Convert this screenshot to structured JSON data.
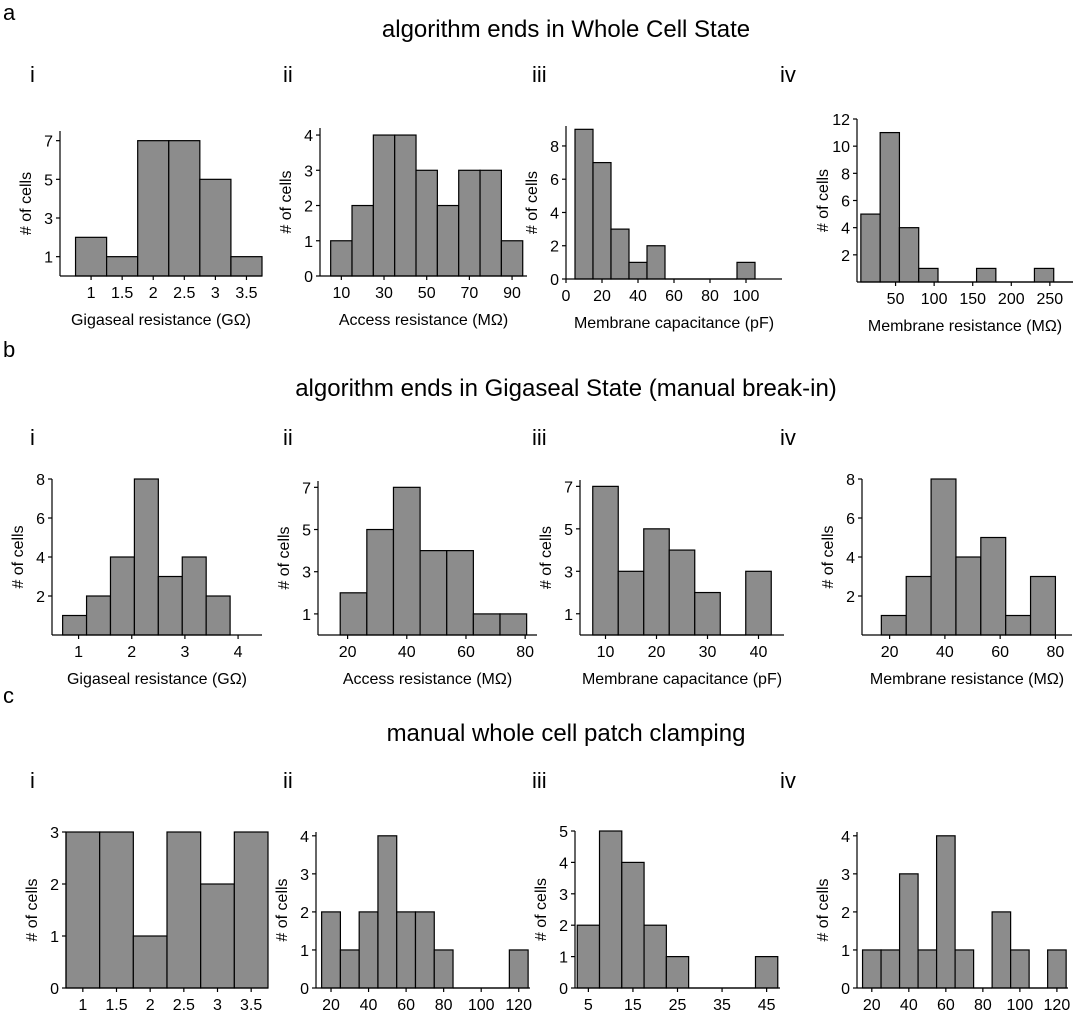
{
  "sections": [
    {
      "letter": "a",
      "title": "algorithm ends in Whole Cell State"
    },
    {
      "letter": "b",
      "title": "algorithm ends in Gigaseal State (manual break-in)"
    },
    {
      "letter": "c",
      "title": "manual whole cell patch clamping"
    }
  ],
  "panel_labels": [
    "i",
    "ii",
    "iii",
    "iv"
  ],
  "colors": {
    "bar_fill": "#8c8c8c",
    "bar_stroke": "#000000",
    "axis": "#000000"
  },
  "chart_data": [
    {
      "type": "bar",
      "section": "a",
      "panel": "i",
      "xlabel": "Gigaseal resistance (GΩ)",
      "ylabel": "# of cells",
      "bin_edges": [
        0.75,
        1.25,
        1.75,
        2.25,
        2.75,
        3.25,
        3.75
      ],
      "values": [
        2,
        1,
        7,
        7,
        5,
        1
      ],
      "xlim": [
        0.5,
        3.75
      ],
      "ylim": [
        0,
        7.5
      ],
      "xticks": [
        1,
        1.5,
        2,
        2.5,
        3,
        3.5
      ],
      "xtick_labels": [
        "1",
        "1.5",
        "2",
        "2.5",
        "3",
        "3.5"
      ],
      "yticks": [
        1,
        3,
        5,
        7
      ],
      "ytick_labels": [
        "1",
        "3",
        "5",
        "7"
      ]
    },
    {
      "type": "bar",
      "section": "a",
      "panel": "ii",
      "xlabel": "Access resistance (MΩ)",
      "ylabel": "# of cells",
      "bin_edges": [
        5,
        15,
        25,
        35,
        45,
        55,
        65,
        75,
        85,
        95
      ],
      "values": [
        1,
        2,
        4,
        4,
        3,
        2,
        3,
        3,
        1
      ],
      "xlim": [
        0,
        97
      ],
      "ylim": [
        0,
        4.2
      ],
      "xticks": [
        10,
        30,
        50,
        70,
        90
      ],
      "xtick_labels": [
        "10",
        "30",
        "50",
        "70",
        "90"
      ],
      "yticks": [
        0,
        1,
        2,
        3,
        4
      ],
      "ytick_labels": [
        "0",
        "1",
        "2",
        "3",
        "4"
      ]
    },
    {
      "type": "bar",
      "section": "a",
      "panel": "iii",
      "xlabel": "Membrane capacitance (pF)",
      "ylabel": "# of cells",
      "bin_edges": [
        5,
        15,
        25,
        35,
        45,
        55,
        65,
        75,
        85,
        95,
        105
      ],
      "values": [
        9,
        7,
        3,
        1,
        2,
        0,
        0,
        0,
        0,
        1
      ],
      "xlim": [
        0,
        120
      ],
      "ylim": [
        0,
        9.2
      ],
      "xticks": [
        0,
        20,
        40,
        60,
        80,
        100
      ],
      "xtick_labels": [
        "0",
        "20",
        "40",
        "60",
        "80",
        "100"
      ],
      "yticks": [
        0,
        2,
        4,
        6,
        8
      ],
      "ytick_labels": [
        "0",
        "2",
        "4",
        "6",
        "8"
      ]
    },
    {
      "type": "bar",
      "section": "a",
      "panel": "iv",
      "xlabel": "Membrane resistance (MΩ)",
      "ylabel": "# of cells",
      "bin_edges": [
        5,
        30,
        55,
        80,
        105,
        130,
        155,
        180,
        205,
        230,
        255,
        280
      ],
      "values": [
        5,
        11,
        4,
        1,
        0,
        0,
        1,
        0,
        0,
        1,
        0
      ],
      "xlim": [
        0,
        280
      ],
      "ylim": [
        0,
        12
      ],
      "xticks": [
        50,
        100,
        150,
        200,
        250
      ],
      "xtick_labels": [
        "50",
        "100",
        "150",
        "200",
        "250"
      ],
      "yticks": [
        2,
        4,
        6,
        8,
        10,
        12
      ],
      "ytick_labels": [
        "2",
        "4",
        "6",
        "8",
        "10",
        "12"
      ]
    },
    {
      "type": "bar",
      "section": "b",
      "panel": "i",
      "xlabel": "Gigaseal resistance (GΩ)",
      "ylabel": "# of cells",
      "bin_edges": [
        0.7,
        1.15,
        1.6,
        2.05,
        2.5,
        2.95,
        3.4,
        3.85
      ],
      "values": [
        1,
        2,
        4,
        8,
        3,
        4,
        2
      ],
      "xlim": [
        0.5,
        4.45
      ],
      "ylim": [
        0,
        8
      ],
      "xticks": [
        1,
        2,
        3,
        4
      ],
      "xtick_labels": [
        "1",
        "2",
        "3",
        "4"
      ],
      "yticks": [
        2,
        4,
        6,
        8
      ],
      "ytick_labels": [
        "2",
        "4",
        "6",
        "8"
      ]
    },
    {
      "type": "bar",
      "section": "b",
      "panel": "ii",
      "xlabel": "Access resistance (MΩ)",
      "ylabel": "# of cells",
      "bin_edges": [
        17.5,
        26.5,
        35.5,
        44.5,
        53.5,
        62.5,
        71.5,
        80.5
      ],
      "values": [
        2,
        5,
        7,
        4,
        4,
        1,
        1
      ],
      "xlim": [
        10,
        84
      ],
      "ylim": [
        0,
        7.3
      ],
      "xticks": [
        20,
        40,
        60,
        80
      ],
      "xtick_labels": [
        "20",
        "40",
        "60",
        "80"
      ],
      "yticks": [
        1,
        3,
        5,
        7
      ],
      "ytick_labels": [
        "1",
        "3",
        "5",
        "7"
      ]
    },
    {
      "type": "bar",
      "section": "b",
      "panel": "iii",
      "xlabel": "Membrane capacitance (pF)",
      "ylabel": "# of cells",
      "bin_edges": [
        7.5,
        12.5,
        17.5,
        22.5,
        27.5,
        32.5,
        37.5,
        42.5
      ],
      "values": [
        7,
        3,
        5,
        4,
        2,
        0,
        3
      ],
      "xlim": [
        5,
        45
      ],
      "ylim": [
        0,
        7.3
      ],
      "xticks": [
        10,
        20,
        30,
        40
      ],
      "xtick_labels": [
        "10",
        "20",
        "30",
        "40"
      ],
      "yticks": [
        1,
        3,
        5,
        7
      ],
      "ytick_labels": [
        "1",
        "3",
        "5",
        "7"
      ]
    },
    {
      "type": "bar",
      "section": "b",
      "panel": "iv",
      "xlabel": "Membrane resistance (MΩ)",
      "ylabel": "# of cells",
      "bin_edges": [
        17,
        26,
        35,
        44,
        53,
        62,
        71,
        80
      ],
      "values": [
        1,
        3,
        8,
        4,
        5,
        1,
        3
      ],
      "xlim": [
        10,
        86
      ],
      "ylim": [
        0,
        8
      ],
      "xticks": [
        20,
        40,
        60,
        80
      ],
      "xtick_labels": [
        "20",
        "40",
        "60",
        "80"
      ],
      "yticks": [
        2,
        4,
        6,
        8
      ],
      "ytick_labels": [
        "2",
        "4",
        "6",
        "8"
      ]
    },
    {
      "type": "bar",
      "section": "c",
      "panel": "i",
      "xlabel": "Gigaseal resistance (GΩ)",
      "ylabel": "# of cells",
      "bin_edges": [
        0.75,
        1.25,
        1.75,
        2.25,
        2.75,
        3.25,
        3.75
      ],
      "values": [
        3,
        3,
        1,
        3,
        2,
        3
      ],
      "xlim": [
        0.75,
        3.75
      ],
      "ylim": [
        0,
        3
      ],
      "xticks": [
        1,
        1.5,
        2,
        2.5,
        3,
        3.5
      ],
      "xtick_labels": [
        "1",
        "1.5",
        "2",
        "2.5",
        "3",
        "3.5"
      ],
      "yticks": [
        0,
        1,
        2,
        3
      ],
      "ytick_labels": [
        "0",
        "1",
        "2",
        "3"
      ]
    },
    {
      "type": "bar",
      "section": "c",
      "panel": "ii",
      "xlabel": "Access resistance (MΩ)",
      "ylabel": "# of cells",
      "bin_edges": [
        15,
        25,
        35,
        45,
        55,
        65,
        75,
        85,
        95,
        105,
        115,
        125
      ],
      "values": [
        2,
        1,
        2,
        4,
        2,
        2,
        1,
        0,
        0,
        0,
        1
      ],
      "xlim": [
        12,
        126
      ],
      "ylim": [
        0,
        4.1
      ],
      "xticks": [
        20,
        40,
        60,
        80,
        100,
        120
      ],
      "xtick_labels": [
        "20",
        "40",
        "60",
        "80",
        "100",
        "120"
      ],
      "yticks": [
        0,
        1,
        2,
        3,
        4
      ],
      "ytick_labels": [
        "0",
        "1",
        "2",
        "3",
        "4"
      ]
    },
    {
      "type": "bar",
      "section": "c",
      "panel": "iii",
      "xlabel": "Membrane capacitance (pF)",
      "ylabel": "# of cells",
      "bin_edges": [
        2.5,
        7.5,
        12.5,
        17.5,
        22.5,
        27.5,
        32.5,
        37.5,
        42.5,
        47.5
      ],
      "values": [
        2,
        5,
        4,
        2,
        1,
        0,
        0,
        0,
        1
      ],
      "xlim": [
        2,
        48
      ],
      "ylim": [
        0,
        5
      ],
      "xticks": [
        5,
        15,
        25,
        35,
        45
      ],
      "xtick_labels": [
        "5",
        "15",
        "25",
        "35",
        "45"
      ],
      "yticks": [
        0,
        1,
        2,
        3,
        4,
        5
      ],
      "ytick_labels": [
        "0",
        "1",
        "2",
        "3",
        "4",
        "5"
      ]
    },
    {
      "type": "bar",
      "section": "c",
      "panel": "iv",
      "xlabel": "Membrane resistance (MΩ)",
      "ylabel": "# of cells",
      "bin_edges": [
        15,
        25,
        35,
        45,
        55,
        65,
        75,
        85,
        95,
        105,
        115,
        125
      ],
      "values": [
        1,
        1,
        3,
        1,
        4,
        1,
        0,
        2,
        1,
        0,
        1
      ],
      "xlim": [
        12,
        126
      ],
      "ylim": [
        0,
        4.1
      ],
      "xticks": [
        20,
        40,
        60,
        80,
        100,
        120
      ],
      "xtick_labels": [
        "20",
        "40",
        "60",
        "80",
        "100",
        "120"
      ],
      "yticks": [
        0,
        1,
        2,
        3,
        4
      ],
      "ytick_labels": [
        "0",
        "1",
        "2",
        "3",
        "4"
      ]
    }
  ]
}
